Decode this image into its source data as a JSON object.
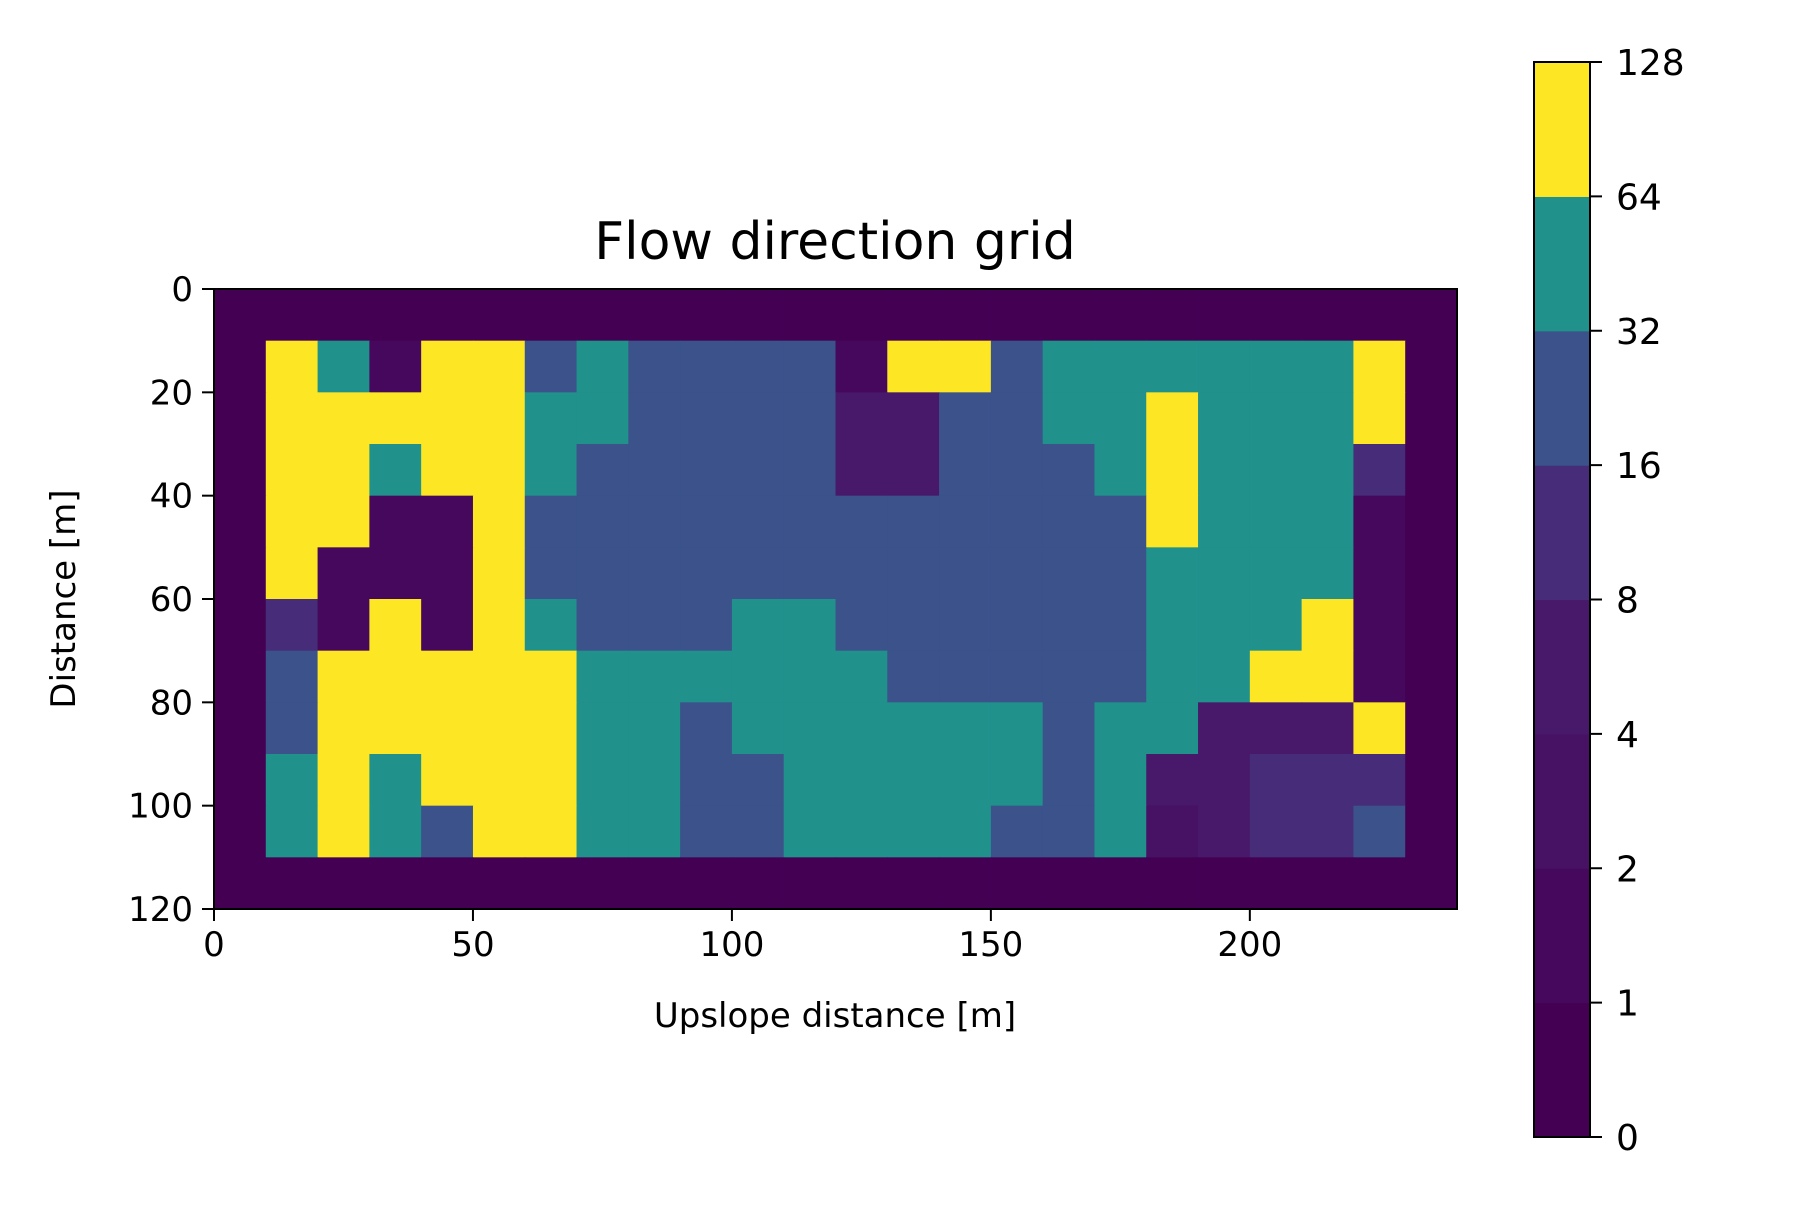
{
  "chart_data": {
    "type": "heatmap",
    "title": "Flow direction grid",
    "xlabel": "Upslope distance [m]",
    "ylabel": "Distance [m]",
    "xlim": [
      0,
      240
    ],
    "ylim": [
      120,
      0
    ],
    "x_ticks": [
      0,
      50,
      100,
      150,
      200
    ],
    "y_ticks": [
      0,
      20,
      40,
      60,
      80,
      100,
      120
    ],
    "cell_size": 10,
    "colorbar": {
      "levels": [
        0,
        1,
        2,
        4,
        8,
        16,
        32,
        64,
        128
      ],
      "tick_labels": [
        "0",
        "1",
        "2",
        "4",
        "8",
        "16",
        "32",
        "64",
        "128"
      ],
      "colors": [
        "#440154",
        "#46085c",
        "#471164",
        "#48186a",
        "#472c7a",
        "#3b528b",
        "#21918c",
        "#fde725"
      ]
    },
    "grid": [
      [
        0,
        0,
        0,
        0,
        0,
        0,
        0,
        0,
        0,
        0,
        0,
        0,
        0,
        0,
        0,
        0,
        0,
        0,
        0,
        0,
        0,
        0,
        0,
        0
      ],
      [
        0,
        64,
        32,
        1,
        64,
        64,
        16,
        32,
        16,
        16,
        16,
        16,
        1,
        128,
        64,
        16,
        32,
        32,
        32,
        32,
        32,
        32,
        64,
        0
      ],
      [
        0,
        64,
        64,
        128,
        64,
        64,
        32,
        32,
        16,
        16,
        16,
        16,
        4,
        4,
        16,
        16,
        32,
        32,
        64,
        32,
        32,
        32,
        64,
        0
      ],
      [
        0,
        64,
        64,
        32,
        64,
        64,
        32,
        16,
        16,
        16,
        16,
        16,
        4,
        4,
        16,
        16,
        16,
        32,
        64,
        32,
        32,
        32,
        8,
        0
      ],
      [
        0,
        64,
        64,
        1,
        1,
        64,
        16,
        16,
        16,
        16,
        16,
        16,
        16,
        16,
        16,
        16,
        16,
        16,
        64,
        32,
        32,
        32,
        1,
        0
      ],
      [
        0,
        64,
        1,
        1,
        1,
        64,
        16,
        16,
        16,
        16,
        16,
        16,
        16,
        16,
        16,
        16,
        16,
        16,
        32,
        32,
        32,
        32,
        1,
        0
      ],
      [
        0,
        8,
        1,
        128,
        1,
        64,
        32,
        16,
        16,
        16,
        32,
        32,
        16,
        16,
        16,
        16,
        16,
        16,
        32,
        32,
        32,
        64,
        1,
        0
      ],
      [
        0,
        16,
        128,
        128,
        128,
        64,
        64,
        32,
        32,
        32,
        32,
        32,
        32,
        16,
        16,
        16,
        16,
        16,
        32,
        32,
        128,
        128,
        1,
        0
      ],
      [
        0,
        16,
        128,
        64,
        128,
        64,
        64,
        32,
        32,
        16,
        32,
        32,
        32,
        32,
        32,
        32,
        16,
        32,
        32,
        4,
        4,
        4,
        128,
        0
      ],
      [
        0,
        32,
        64,
        32,
        128,
        64,
        64,
        32,
        32,
        16,
        16,
        32,
        32,
        32,
        32,
        32,
        16,
        32,
        4,
        4,
        8,
        8,
        8,
        0
      ],
      [
        0,
        32,
        64,
        32,
        16,
        64,
        64,
        32,
        32,
        16,
        16,
        32,
        32,
        32,
        32,
        16,
        16,
        32,
        2,
        4,
        8,
        8,
        16,
        0
      ],
      [
        0,
        0,
        0,
        0,
        0,
        0,
        0,
        0,
        0,
        0,
        0,
        0,
        0,
        0,
        0,
        0,
        0,
        0,
        0,
        0,
        0,
        0,
        0,
        0
      ]
    ]
  }
}
